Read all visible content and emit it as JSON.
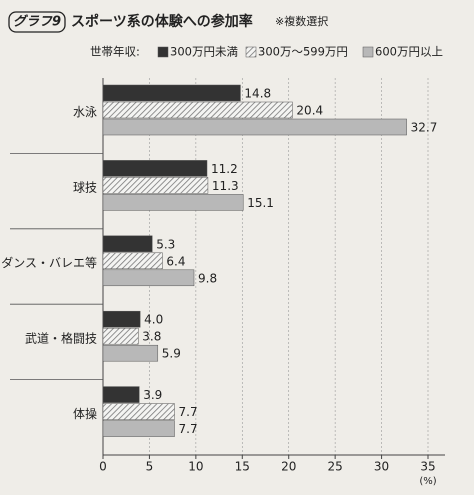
{
  "chart_data": {
    "type": "barh",
    "badge": "グラフ9",
    "title": "スポーツ系の体験への参加率",
    "subtitle": "※複数選択",
    "legend_title": "世帯年収:",
    "categories": [
      "水泳",
      "球技",
      "ダンス・バレエ等",
      "武道・格闘技",
      "体操"
    ],
    "series": [
      {
        "name": "300万円未満",
        "color": "#333333",
        "values": [
          14.8,
          11.2,
          5.3,
          4,
          3.9
        ],
        "value_labels": [
          "14.8",
          "11.2",
          "5.3",
          "4.0",
          "3.9"
        ]
      },
      {
        "name": "300万～599万円",
        "color": "#777777",
        "pattern": "hatch",
        "values": [
          20.4,
          11.3,
          6.4,
          3.8,
          7.7
        ]
      },
      {
        "name": "600万円以上",
        "color": "#b8b8b8",
        "values": [
          32.7,
          15.1,
          9.8,
          5.9,
          7.7
        ]
      }
    ],
    "xlim": [
      0,
      35
    ],
    "xticks": [
      0,
      5,
      10,
      15,
      20,
      25,
      30,
      35
    ],
    "x_unit": "(%)",
    "grid": true
  }
}
